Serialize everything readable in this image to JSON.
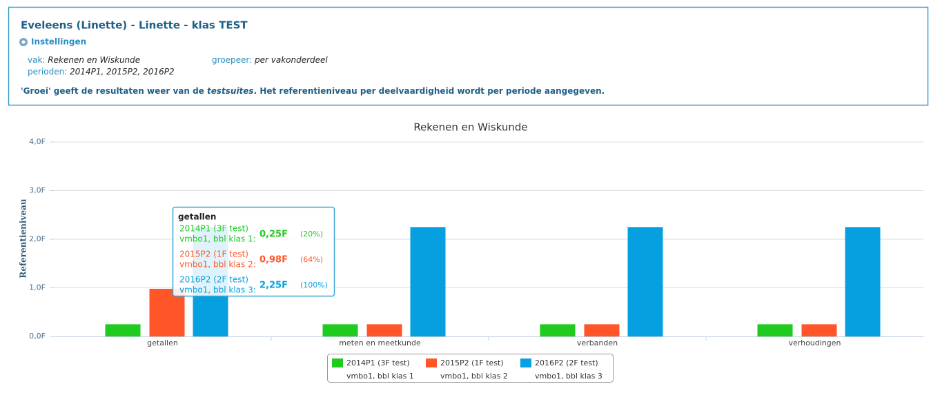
{
  "header": {
    "title": "Eveleens (Linette) - Linette - klas TEST",
    "settings_link": "Instellingen",
    "fields": [
      {
        "label": "vak:",
        "value": "Rekenen en Wiskunde"
      },
      {
        "label": "groepeer:",
        "value": "per vakonderdeel"
      },
      {
        "label": "perioden:",
        "value": "2014P1, 2015P2, 2016P2"
      }
    ],
    "note_pre": "'Groei' geeft de resultaten weer van de ",
    "note_em": "testsuites",
    "note_post": ". Het referentieniveau per deelvaardigheid wordt per periode aangegeven."
  },
  "chart_data": {
    "type": "bar",
    "title": "Rekenen en Wiskunde",
    "y_label": "Referentieniveau",
    "categories": [
      "getallen",
      "meten en meetkunde",
      "verbanden",
      "verhoudingen"
    ],
    "series": [
      {
        "name": "2014P1 (3F test)",
        "group": "vmbo1, bbl klas 1",
        "color": "#1ecb1e",
        "values": [
          0.25,
          0.25,
          0.25,
          0.25
        ]
      },
      {
        "name": "2015P2 (1F test)",
        "group": "vmbo1, bbl klas 2",
        "color": "#ff5529",
        "values": [
          0.98,
          0.25,
          0.25,
          0.25
        ]
      },
      {
        "name": "2016P2 (2F test)",
        "group": "vmbo1, bbl klas 3",
        "color": "#069fdf",
        "values": [
          2.25,
          2.25,
          2.25,
          2.25
        ]
      }
    ],
    "ylim": [
      0,
      4
    ],
    "yticks": [
      {
        "value": 0,
        "label": "0,0F"
      },
      {
        "value": 1,
        "label": "1,0F"
      },
      {
        "value": 2,
        "label": "2,0F"
      },
      {
        "value": 3,
        "label": "3,0F"
      },
      {
        "value": 4,
        "label": "4,0F"
      }
    ],
    "grid": true,
    "tooltip": {
      "title": "getallen",
      "items": [
        {
          "lines": [
            "2014P1 (3F test)",
            "vmbo1, bbl klas 1:"
          ],
          "value": "0,25F",
          "percent": "(20%)"
        },
        {
          "lines": [
            "2015P2 (1F test)",
            "vmbo1, bbl klas 2:"
          ],
          "value": "0,98F",
          "percent": "(64%)"
        },
        {
          "lines": [
            "2016P2 (2F test)",
            "vmbo1, bbl klas 3:"
          ],
          "value": "2,25F",
          "percent": "(100%)"
        }
      ]
    }
  }
}
